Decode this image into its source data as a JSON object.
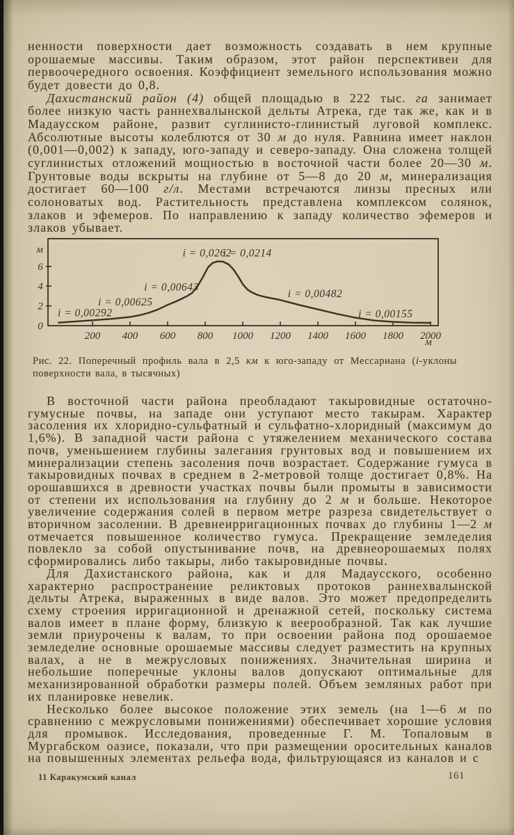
{
  "page": {
    "footer_left": "11 Каракумский канал",
    "page_number": "161"
  },
  "colors": {
    "paper": "#d8ceb2",
    "ink": "#463a26",
    "chart_ink": "#3a3126",
    "edge": "#15120d"
  },
  "content": {
    "top_paragraphs": [
      {
        "indent": false,
        "runs": [
          "ненности поверхности дает возможность создавать в нем крупные орошаемые массивы. Таким образом, этот район перспективен для первоочередного освоения. Коэффициент земельного использования можно будет довести до 0,8."
        ]
      },
      {
        "indent": true,
        "runs": [
          {
            "t": "Дахистанский район (4)",
            "em": true
          },
          " общей площадью в 222 тыс. ",
          {
            "t": "га",
            "em": true
          },
          " занимает более низкую часть раннехвалынской дельты Атрека, где так же, как и в Мадаусском районе, развит суглинисто-глинистый луговой комплекс. Абсолютные высоты колеблются от 30 ",
          {
            "t": "м",
            "em": true
          },
          " до нуля. Равнина имеет наклон (0,001—0,002) к западу, юго-западу и северо-западу. Она сложена толщей суглинистых отложений мощностью в восточной части более 20—30 ",
          {
            "t": "м",
            "em": true
          },
          ". Грунтовые воды вскрыты на глубине от 5—8 до 20 ",
          {
            "t": "м",
            "em": true
          },
          ", минерализация достигает 60—100 ",
          {
            "t": "г/л",
            "em": true
          },
          ". Местами встречаются линзы пресных или солоноватых вод. Растительность представлена комплексом солянок, злаков и эфемеров. По направлению к западу количество эфемеров и злаков убывает."
        ]
      }
    ],
    "bottom_paragraphs": [
      {
        "indent": true,
        "runs": [
          "В восточной части района преобладают такыровидные остаточно-гумусные почвы, на западе они уступают место такырам. Характер засоления их хлоридно-сульфатный и сульфатно-хлоридный (максимум до 1,6%). В западной части района с утяжелением механического состава почв, уменьшением глубины залегания грунтовых вод и повышением их минерализации степень засоления почв возрастает. Содержание гумуса в такыровидных почвах в среднем в 2-метровой толще достигает 0,8%. На орошавшихся в древности участках почвы были промыты в зависимости от степени их использования на глубину до 2 ",
          {
            "t": "м",
            "em": true
          },
          " и больше. Некоторое увеличение содержания солей в первом метре разреза свидетельствует о вторичном засолении. В древнеирригационных почвах до глубины 1—2 ",
          {
            "t": "м",
            "em": true
          },
          " отмечается повышенное количество гумуса. Прекращение земледелия повлекло за собой опустынивание почв, на древнеорошаемых полях сформировались либо такыры, либо такыровидные почвы."
        ]
      },
      {
        "indent": true,
        "runs": [
          "Для Дахистанского района, как и для Мадаусского, особенно характерно распространение реликтовых протоков раннехвалынской дельты Атрека, выраженных в виде валов. Это может предопределить схему строения ирригационной и дренажной сетей, поскольку система валов имеет в плане форму, близкую к веерообразной. Так как лучшие земли приурочены к валам, то при освоении района под орошаемое земледелие основные орошаемые массивы следует разместить на крупных валах, а не в межрусловых понижениях. Значительная ширина и небольшие поперечные уклоны валов допускают оптимальные для механизированной обработки размеры полей. Объем земляных работ при их планировке невелик."
        ]
      },
      {
        "indent": true,
        "runs": [
          "Несколько более высокое положение этих земель (на 1—6 ",
          {
            "t": "м",
            "em": true
          },
          " по сравнению с межрусловыми понижениями) обеспечивает хорошие условия для промывок. Исследования, проведенные Г. М. Топаловым в Мургабском оазисе, показали, что при размещении оросительных каналов на повышенных элементах рельефа вода, фильтрующаяся из каналов и с"
        ]
      }
    ]
  },
  "figure": {
    "caption_runs": [
      "Рис. 22. Поперечный профиль вала в 2,5 ",
      {
        "t": "км",
        "em": true
      },
      " к юго-западу от Мессариана (",
      {
        "t": "i",
        "em": true
      },
      "-уклоны поверхности вала, в тысячных)"
    ]
  },
  "chart_data": {
    "type": "line",
    "title": "Поперечный профиль вала в 2,5 км к юго-западу от Мессариана",
    "xlabel": "м",
    "ylabel": "м",
    "xlim": [
      0,
      2050
    ],
    "ylim": [
      0,
      8.8
    ],
    "x_ticks": [
      200,
      400,
      600,
      800,
      1000,
      1200,
      1400,
      1600,
      1800,
      2000
    ],
    "y_ticks": [
      0,
      2,
      4,
      6
    ],
    "grid": false,
    "series": [
      {
        "name": "профиль вала",
        "points": [
          [
            20,
            0.3
          ],
          [
            150,
            0.48
          ],
          [
            300,
            0.68
          ],
          [
            400,
            0.88
          ],
          [
            450,
            1.05
          ],
          [
            500,
            1.3
          ],
          [
            550,
            1.65
          ],
          [
            600,
            2.1
          ],
          [
            650,
            2.5
          ],
          [
            700,
            2.95
          ],
          [
            730,
            3.3
          ],
          [
            760,
            4.0
          ],
          [
            790,
            5.0
          ],
          [
            815,
            5.9
          ],
          [
            840,
            6.35
          ],
          [
            865,
            6.5
          ],
          [
            895,
            6.48
          ],
          [
            925,
            6.2
          ],
          [
            950,
            5.7
          ],
          [
            975,
            5.0
          ],
          [
            1000,
            4.2
          ],
          [
            1025,
            3.65
          ],
          [
            1050,
            3.35
          ],
          [
            1080,
            3.1
          ],
          [
            1120,
            2.9
          ],
          [
            1200,
            2.6
          ],
          [
            1300,
            2.1
          ],
          [
            1400,
            1.65
          ],
          [
            1500,
            1.2
          ],
          [
            1600,
            0.8
          ],
          [
            1700,
            0.52
          ],
          [
            1800,
            0.38
          ],
          [
            1900,
            0.3
          ],
          [
            2000,
            0.28
          ]
        ]
      }
    ],
    "annotations": [
      {
        "text": "i = 0,00292",
        "x": 15,
        "y": 0.95
      },
      {
        "text": "i = 0,00625",
        "x": 230,
        "y": 2.05
      },
      {
        "text": "i = 0,00643",
        "x": 475,
        "y": 3.55
      },
      {
        "text": "i = 0,0262",
        "x": 680,
        "y": 7.0
      },
      {
        "text": "i = 0,0214",
        "x": 895,
        "y": 7.0
      },
      {
        "text": "i = 0,00482",
        "x": 1240,
        "y": 2.9
      },
      {
        "text": "i = 0,00155",
        "x": 1615,
        "y": 0.85
      }
    ]
  }
}
